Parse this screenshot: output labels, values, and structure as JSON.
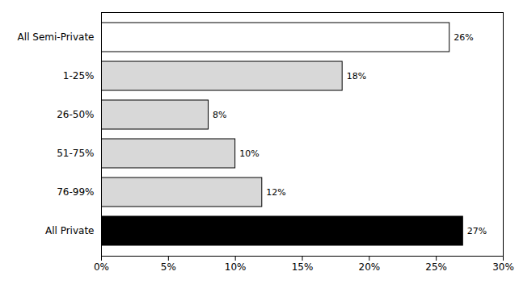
{
  "chart_data": {
    "type": "bar",
    "orientation": "horizontal",
    "categories": [
      "All Semi-Private",
      "1-25%",
      "26-50%",
      "51-75%",
      "76-99%",
      "All Private"
    ],
    "values": [
      26,
      18,
      8,
      10,
      12,
      27
    ],
    "value_labels": [
      "26%",
      "18%",
      "8%",
      "10%",
      "12%",
      "27%"
    ],
    "data_labels": true,
    "colors": [
      "white",
      "#d8d8d8",
      "#d8d8d8",
      "#d8d8d8",
      "#d8d8d8",
      "black"
    ],
    "xlim": [
      0,
      30
    ],
    "xticks": [
      {
        "value": 0,
        "label": "0%"
      },
      {
        "value": 5,
        "label": "5%"
      },
      {
        "value": 10,
        "label": "10%"
      },
      {
        "value": 15,
        "label": "15%"
      },
      {
        "value": 20,
        "label": "20%"
      },
      {
        "value": 25,
        "label": "25%"
      },
      {
        "value": 30,
        "label": "30%"
      }
    ],
    "grid": false
  }
}
